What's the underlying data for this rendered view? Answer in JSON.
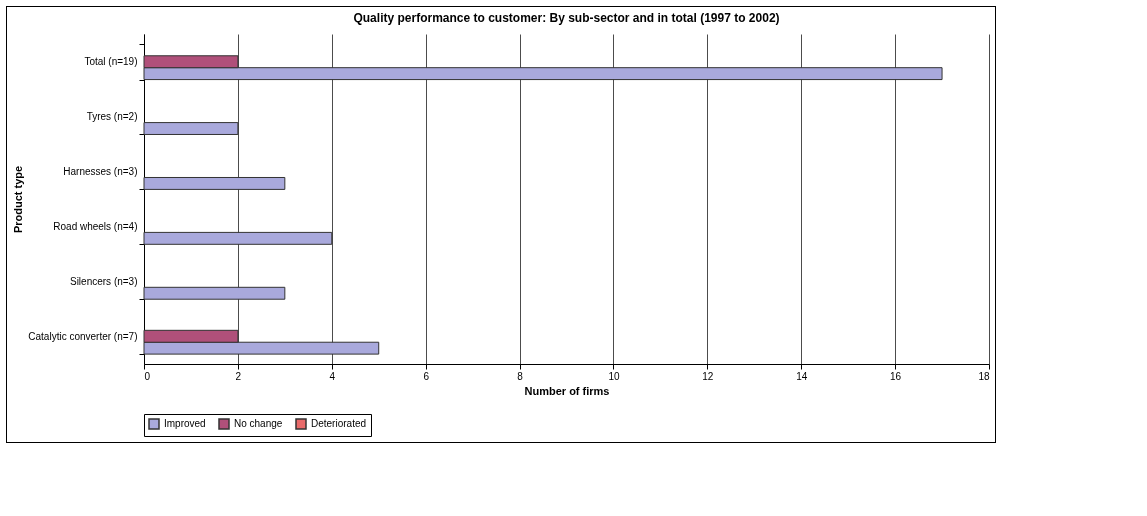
{
  "chart_data": {
    "type": "bar",
    "orientation": "horizontal",
    "title": "Quality performance to customer: By sub-sector and in total (1997 to 2002)",
    "xlabel": "Number of firms",
    "ylabel": "Product type",
    "categories": [
      "Total (n=19)",
      "Tyres (n=2)",
      "Harnesses (n=3)",
      "Road wheels (n=4)",
      "Silencers (n=3)",
      "Catalytic converter (n=7)"
    ],
    "series": [
      {
        "name": "Improved",
        "color": "#a9a9dc",
        "values": [
          17,
          2,
          3,
          4,
          3,
          5
        ]
      },
      {
        "name": "No change",
        "color": "#b0507a",
        "values": [
          2,
          0,
          0,
          0,
          0,
          2
        ]
      },
      {
        "name": "Deteriorated",
        "color": "#e86a6a",
        "values": [
          0,
          0,
          0,
          0,
          0,
          0
        ]
      }
    ],
    "xlim": [
      0,
      18
    ],
    "xticks": [
      0,
      2,
      4,
      6,
      8,
      10,
      12,
      14,
      16,
      18
    ],
    "grid": "x",
    "legend": "bottom"
  }
}
